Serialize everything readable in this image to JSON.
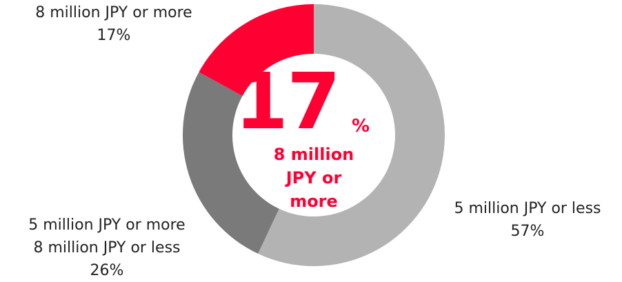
{
  "chart_data": {
    "type": "pie",
    "donut": true,
    "slices": [
      {
        "label_lines": [
          "8 million JPY or more"
        ],
        "value": 17,
        "value_text": "17%",
        "color": "#ff0033"
      },
      {
        "label_lines": [
          "5 million JPY or less"
        ],
        "value": 57,
        "value_text": "57%",
        "color": "#b3b3b3"
      },
      {
        "label_lines": [
          "5 million JPY or more",
          "8 million JPY or less"
        ],
        "value": 26,
        "value_text": "26%",
        "color": "#7a7a7a"
      }
    ],
    "center": {
      "big": "17",
      "unit": "%",
      "caption": [
        "8 million",
        "JPY or",
        "more"
      ]
    },
    "legend": "none"
  }
}
